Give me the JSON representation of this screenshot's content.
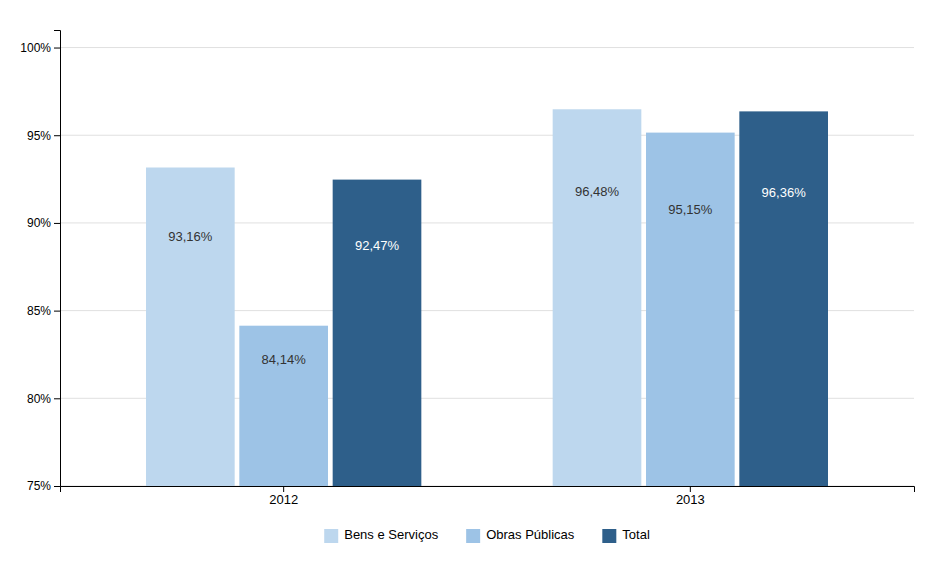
{
  "chart_data": {
    "type": "bar",
    "categories": [
      "2012",
      "2013"
    ],
    "series": [
      {
        "name": "Bens e Serviços",
        "color": "#bdd7ee",
        "values": [
          93.16,
          96.48
        ],
        "value_labels": [
          "93,16%",
          "96,48%"
        ]
      },
      {
        "name": "Obras Públicas",
        "color": "#9dc3e6",
        "values": [
          84.14,
          95.15
        ],
        "value_labels": [
          "84,14%",
          "95,15%"
        ]
      },
      {
        "name": "Total",
        "color": "#2e5f8a",
        "values": [
          92.47,
          96.36
        ],
        "value_labels": [
          "92,47%",
          "96,36%"
        ]
      }
    ],
    "ylim": [
      75,
      101
    ],
    "yticks": [
      {
        "value": 75,
        "label": "75%"
      },
      {
        "value": 80,
        "label": "80%"
      },
      {
        "value": 85,
        "label": "85%"
      },
      {
        "value": 90,
        "label": "90%"
      },
      {
        "value": 95,
        "label": "95%"
      },
      {
        "value": 100,
        "label": "100%"
      }
    ],
    "grid": true,
    "legend": "bottom",
    "data_labels": true
  }
}
